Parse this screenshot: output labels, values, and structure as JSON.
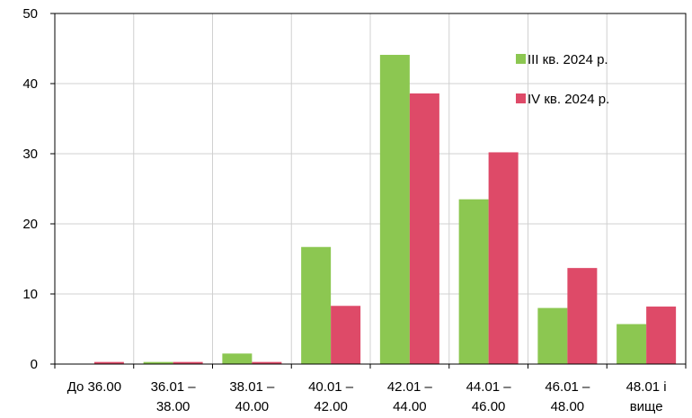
{
  "chart_data": {
    "type": "bar",
    "categories": [
      [
        "До 36.00"
      ],
      [
        "36.01 –",
        "38.00"
      ],
      [
        "38.01 –",
        "40.00"
      ],
      [
        "40.01 –",
        "42.00"
      ],
      [
        "42.01 –",
        "44.00"
      ],
      [
        "44.01 –",
        "46.00"
      ],
      [
        "46.01 –",
        "48.00"
      ],
      [
        "48.01 і",
        "вище"
      ]
    ],
    "series": [
      {
        "name": "III кв. 2024 р.",
        "color": "#8cc751",
        "values": [
          0,
          0.3,
          1.5,
          16.7,
          44.1,
          23.5,
          8.0,
          5.7
        ]
      },
      {
        "name": "IV кв. 2024 р.",
        "color": "#de4a68",
        "values": [
          0.3,
          0.3,
          0.3,
          8.3,
          38.6,
          30.2,
          13.7,
          8.2
        ]
      }
    ],
    "y_ticks": [
      "0",
      "10",
      "20",
      "30",
      "40",
      "50"
    ],
    "ylim": [
      0,
      50
    ],
    "grid": true,
    "legend_position": "top-right"
  }
}
